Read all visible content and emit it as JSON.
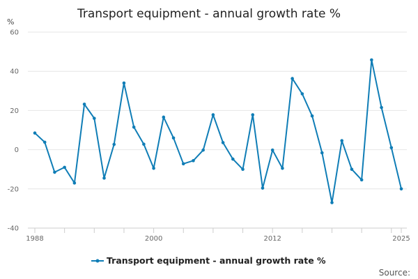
{
  "chart_data": {
    "type": "line",
    "title": "Transport equipment - annual growth rate %",
    "ylabel": "%",
    "xlabel": "",
    "ylim": [
      -40,
      60
    ],
    "yticks": [
      60,
      40,
      20,
      0,
      -20,
      -40
    ],
    "xlim": [
      1988,
      2025
    ],
    "xtick_labels": [
      1988,
      2000,
      2012,
      2025
    ],
    "grid": "horizontal",
    "legend_position": "bottom-center",
    "series": [
      {
        "name": "Transport equipment - annual growth rate %",
        "color": "#0f7db6",
        "x": [
          1988,
          1989,
          1990,
          1991,
          1992,
          1993,
          1994,
          1995,
          1996,
          1997,
          1998,
          1999,
          2000,
          2001,
          2002,
          2003,
          2004,
          2005,
          2006,
          2007,
          2008,
          2009,
          2010,
          2011,
          2012,
          2013,
          2014,
          2015,
          2016,
          2017,
          2018,
          2019,
          2020,
          2021,
          2022,
          2023,
          2024,
          2025
        ],
        "values": [
          8.5,
          3.8,
          -11.5,
          -9,
          -17,
          23.2,
          16,
          -14.5,
          2.7,
          34,
          11.5,
          2.8,
          -9.5,
          16.6,
          6,
          -7.2,
          -5.6,
          -0.2,
          17.8,
          3.6,
          -4.8,
          -10,
          17.8,
          -19.6,
          -0.2,
          -9.5,
          36.3,
          28.5,
          17.2,
          -1.6,
          -27,
          4.6,
          -10,
          -15.4,
          45.8,
          21.5,
          1,
          -20
        ]
      }
    ]
  },
  "source_label": "Source:"
}
